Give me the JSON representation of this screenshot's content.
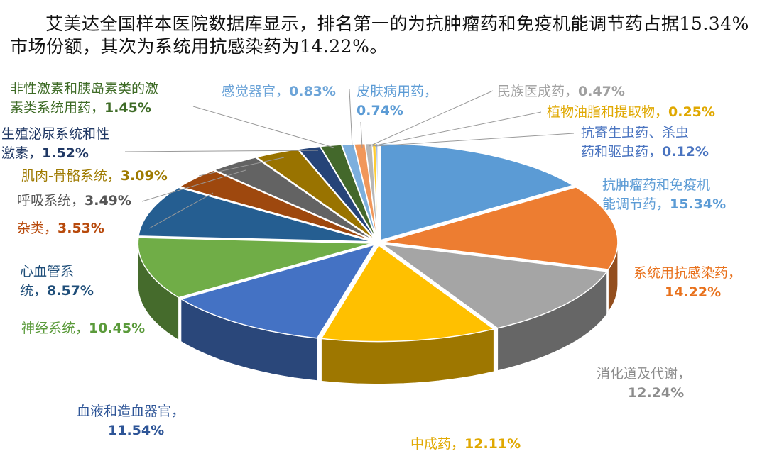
{
  "headline": "艾美达全国样本医院数据库显示，排名第一的为抗肿瘤药和免疫机能调节药占据15.34%市场份额，其次为系统用抗感染药为14.22%。",
  "chart_data": {
    "type": "pie",
    "style": "3d-exploded",
    "legend": "none",
    "slices": [
      {
        "name": "抗肿瘤药和免疫机能调节药",
        "value": 15.34,
        "label_lines": [
          "抗肿瘤药和免疫机",
          "能调节药，"
        ],
        "pct_text": "15.34%",
        "color": "#5B9BD5"
      },
      {
        "name": "系统用抗感染药",
        "value": 14.22,
        "label_lines": [
          "系统用抗感染药，",
          ""
        ],
        "pct_text": "14.22%",
        "color": "#ED7D31"
      },
      {
        "name": "消化道及代谢",
        "value": 12.24,
        "label_lines": [
          "消化道及代谢，",
          ""
        ],
        "pct_text": "12.24%",
        "color": "#A5A5A5"
      },
      {
        "name": "中成药",
        "value": 12.11,
        "label_lines": [
          "中成药，"
        ],
        "pct_text": "12.11%",
        "color": "#FFC000"
      },
      {
        "name": "血液和造血器官",
        "value": 11.54,
        "label_lines": [
          "血液和造血器官，",
          ""
        ],
        "pct_text": "11.54%",
        "color": "#4472C4"
      },
      {
        "name": "神经系统",
        "value": 10.45,
        "label_lines": [
          "神经系统，"
        ],
        "pct_text": "10.45%",
        "color": "#70AD47"
      },
      {
        "name": "心血管系统",
        "value": 8.57,
        "label_lines": [
          "心血管系",
          "统，"
        ],
        "pct_text": "8.57%",
        "color": "#255E91"
      },
      {
        "name": "杂类",
        "value": 3.53,
        "label_lines": [
          "杂类，"
        ],
        "pct_text": "3.53%",
        "color": "#9E480E"
      },
      {
        "name": "呼吸系统",
        "value": 3.49,
        "label_lines": [
          "呼吸系统，"
        ],
        "pct_text": "3.49%",
        "color": "#636363"
      },
      {
        "name": "肌肉-骨骼系统",
        "value": 3.09,
        "label_lines": [
          "肌肉-骨骼系统，"
        ],
        "pct_text": "3.09%",
        "color": "#997300"
      },
      {
        "name": "生殖泌尿系统和性激素",
        "value": 1.52,
        "label_lines": [
          "生殖泌尿系统和性",
          "激素，"
        ],
        "pct_text": "1.52%",
        "color": "#264478"
      },
      {
        "name": "非性激素和胰岛素类的激素类系统用药",
        "value": 1.45,
        "label_lines": [
          "非性激素和胰岛素类的激",
          "素类系统用药，"
        ],
        "pct_text": "1.45%",
        "color": "#43682B"
      },
      {
        "name": "感觉器官",
        "value": 0.83,
        "label_lines": [
          "感觉器官，"
        ],
        "pct_text": "0.83%",
        "color": "#7CAFDD"
      },
      {
        "name": "皮肤病用药",
        "value": 0.74,
        "label_lines": [
          "皮肤病用药，",
          ""
        ],
        "pct_text": "0.74%",
        "color": "#F1975A"
      },
      {
        "name": "民族医成药",
        "value": 0.47,
        "label_lines": [
          "民族医成药，"
        ],
        "pct_text": "0.47%",
        "color": "#B7B7B7"
      },
      {
        "name": "植物油脂和提取物",
        "value": 0.25,
        "label_lines": [
          "植物油脂和提取物，"
        ],
        "pct_text": "0.25%",
        "color": "#FFCD33"
      },
      {
        "name": "抗寄生虫药、杀虫药和驱虫药",
        "value": 0.12,
        "label_lines": [
          "抗寄生虫药、杀虫",
          "药和驱虫药，"
        ],
        "pct_text": "0.12%",
        "color": "#698ED0"
      }
    ]
  }
}
